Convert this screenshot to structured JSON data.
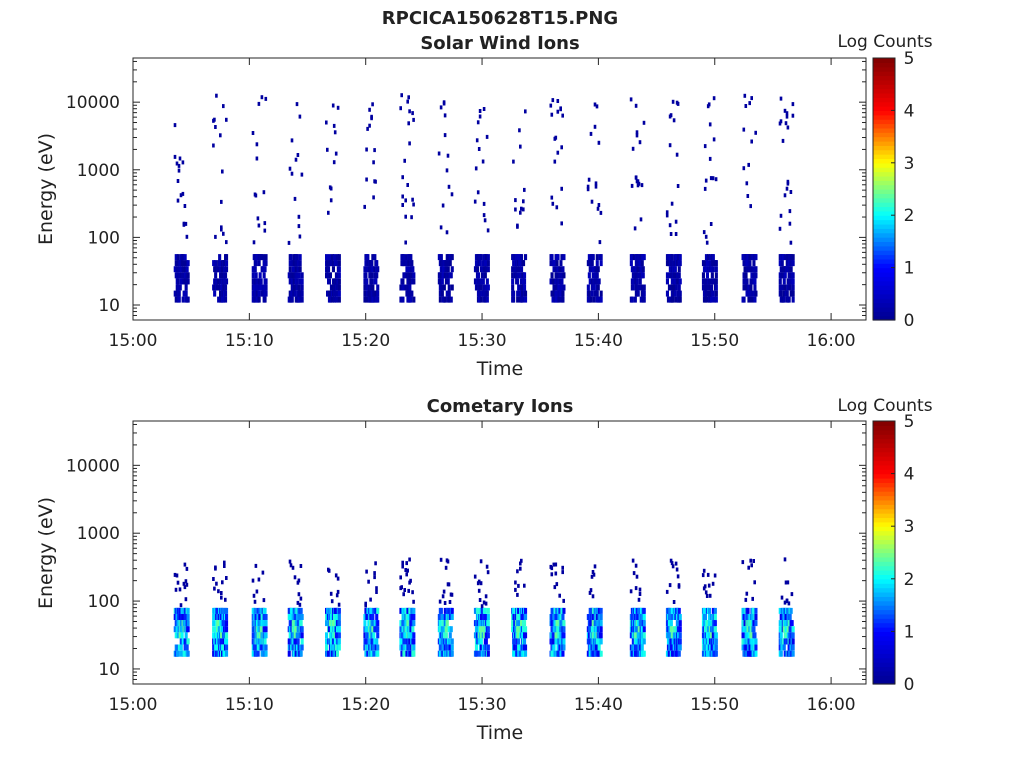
{
  "figure_title": "RPCICA150628T15.PNG",
  "colorbar_label": "Log Counts",
  "colors": {
    "jet": [
      "#00008f",
      "#0000ff",
      "#00ffff",
      "#ffff00",
      "#ff0000",
      "#800000"
    ]
  },
  "chart_data": [
    {
      "type": "heatmap",
      "title": "Solar Wind Ions",
      "xlabel": "Time",
      "ylabel": "Energy (eV)",
      "x_ticks": [
        "15:00",
        "15:10",
        "15:20",
        "15:30",
        "15:40",
        "15:50",
        "16:00"
      ],
      "x_range_minutes": [
        0,
        63
      ],
      "y_scale": "log",
      "y_range": [
        6,
        45000
      ],
      "y_ticks": [
        "10",
        "100",
        "1000",
        "10000"
      ],
      "colorbar_range": [
        0,
        5
      ],
      "colorbar_ticks": [
        "0",
        "1",
        "2",
        "3",
        "4",
        "5"
      ],
      "data_coverage_minutes": [
        15.05,
        15.95
      ],
      "scan_cycle_times_minutes": [
        3.5,
        6.8,
        10.2,
        13.3,
        16.5,
        19.8,
        22.9,
        26.2,
        29.3,
        32.5,
        35.8,
        39.0,
        42.7,
        45.8,
        48.9,
        52.3,
        55.5
      ],
      "typical_level": 0.2,
      "max_level": 1.3
    },
    {
      "type": "heatmap",
      "title": "Cometary Ions",
      "xlabel": "Time",
      "ylabel": "Energy (eV)",
      "x_ticks": [
        "15:00",
        "15:10",
        "15:20",
        "15:30",
        "15:40",
        "15:50",
        "16:00"
      ],
      "x_range_minutes": [
        0,
        63
      ],
      "y_scale": "log",
      "y_range": [
        6,
        45000
      ],
      "y_ticks": [
        "10",
        "100",
        "1000",
        "10000"
      ],
      "colorbar_range": [
        0,
        5
      ],
      "colorbar_ticks": [
        "0",
        "1",
        "2",
        "3",
        "4",
        "5"
      ],
      "data_coverage_minutes": [
        15.05,
        15.95
      ],
      "scan_cycle_times_minutes": [
        3.5,
        6.8,
        10.2,
        13.3,
        16.5,
        19.8,
        22.9,
        26.2,
        29.3,
        32.5,
        35.8,
        39.0,
        42.7,
        45.8,
        48.9,
        52.3,
        55.5
      ],
      "typical_level": 1.5,
      "max_level": 2.4
    }
  ]
}
